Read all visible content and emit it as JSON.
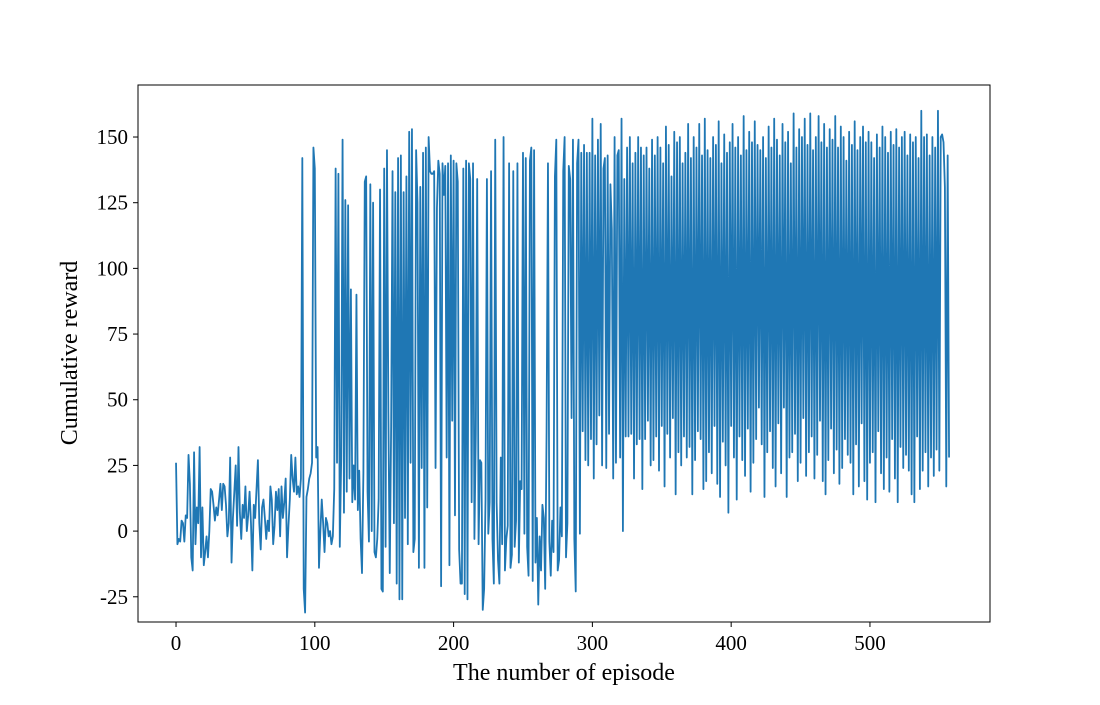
{
  "chart_data": {
    "type": "line",
    "xlabel": "The number of episode",
    "ylabel": "Cumulative reward",
    "xlim": [
      -27.4,
      586.5
    ],
    "xticks": [
      0,
      100,
      200,
      300,
      400,
      500
    ],
    "ylim": [
      -34.6,
      169.8
    ],
    "yticks": [
      -25,
      0,
      25,
      50,
      75,
      100,
      125,
      150
    ],
    "grid": false,
    "series": [
      {
        "name": "Cumulative reward",
        "color": "#1f77b4",
        "values": [
          26,
          -5,
          -3,
          -4,
          4,
          3,
          -4,
          6,
          5,
          29,
          18,
          -10,
          -15,
          30,
          -5,
          9,
          3,
          32,
          -10,
          9,
          -13,
          -8,
          -2,
          -10,
          0,
          16,
          15,
          10,
          4,
          9,
          6,
          12,
          18,
          8,
          18,
          17,
          10,
          -2,
          3,
          28,
          -12,
          5,
          15,
          25,
          2,
          32,
          7,
          -3,
          10,
          5,
          17,
          0,
          6,
          15,
          3,
          -15,
          10,
          5,
          16,
          27,
          3,
          -7,
          9,
          12,
          5,
          -3,
          4,
          0,
          17,
          12,
          -5,
          2,
          15,
          8,
          16,
          -2,
          17,
          5,
          11,
          20,
          -10,
          2,
          12,
          29,
          20,
          15,
          28,
          14,
          17,
          13,
          20,
          142,
          -22,
          -31,
          13,
          16,
          20,
          22,
          26,
          146,
          138,
          28,
          32,
          -14,
          0,
          12,
          3,
          -8,
          5,
          3,
          -2,
          0,
          -5,
          -2,
          16,
          138,
          26,
          136,
          -6,
          27,
          149,
          7,
          126,
          15,
          124,
          20,
          92,
          11,
          25,
          12,
          90,
          8,
          23,
          -3,
          -16,
          22,
          133,
          135,
          15,
          -4,
          132,
          0,
          125,
          -8,
          -10,
          -3,
          12,
          130,
          -22,
          -23,
          138,
          -6,
          145,
          45,
          -16,
          40,
          137,
          3,
          129,
          -20,
          142,
          -26,
          143,
          -26,
          129,
          5,
          135,
          -5,
          152,
          26,
          153,
          -8,
          -3,
          145,
          125,
          -14,
          131,
          24,
          144,
          -14,
          146,
          9,
          150,
          137,
          136,
          136,
          137,
          24,
          123,
          141,
          136,
          -21,
          140,
          128,
          139,
          28,
          140,
          -13,
          143,
          42,
          141,
          6,
          140,
          133,
          -7,
          -20,
          -20,
          138,
          -24,
          141,
          -26,
          140,
          134,
          11,
          140,
          -3,
          37,
          134,
          -5,
          27,
          26,
          -30,
          -22,
          12,
          134,
          -1,
          11,
          137,
          -3,
          -20,
          149,
          11,
          -11,
          -20,
          28,
          -5,
          150,
          -15,
          -3,
          2,
          140,
          -14,
          -9,
          137,
          -6,
          4,
          140,
          -12,
          19,
          16,
          144,
          -1,
          142,
          -6,
          -17,
          141,
          146,
          -19,
          145,
          -12,
          5,
          -28,
          -2,
          -15,
          10,
          5,
          -22,
          38,
          140,
          -4,
          -17,
          4,
          -8,
          135,
          149,
          -15,
          -11,
          9,
          -2,
          137,
          150,
          -10,
          3,
          139,
          134,
          43,
          149,
          -3,
          -23,
          140,
          149,
          -1,
          144,
          38,
          147,
          27,
          144,
          25,
          144,
          35,
          157,
          20,
          143,
          33,
          149,
          44,
          155,
          25,
          138,
          142,
          24,
          143,
          37,
          132,
          115,
          20,
          150,
          26,
          143,
          145,
          28,
          157,
          0,
          134,
          36,
          146,
          36,
          150,
          37,
          140,
          20,
          144,
          33,
          150,
          35,
          146,
          16,
          143,
          35,
          146,
          42,
          138,
          25,
          149,
          27,
          143,
          36,
          150,
          23,
          146,
          40,
          140,
          17,
          154,
          37,
          147,
          28,
          135,
          43,
          152,
          14,
          148,
          30,
          150,
          25,
          140,
          36,
          144,
          28,
          155,
          32,
          142,
          14,
          150,
          27,
          146,
          38,
          155,
          35,
          143,
          16,
          157,
          19,
          145,
          30,
          142,
          22,
          150,
          40,
          147,
          18,
          156,
          13,
          140,
          34,
          151,
          25,
          144,
          7,
          148,
          40,
          155,
          28,
          146,
          12,
          150,
          36,
          143,
          27,
          158,
          21,
          145,
          39,
          152,
          15,
          148,
          26,
          156,
          35,
          147,
          47,
          145,
          33,
          150,
          13,
          142,
          30,
          154,
          38,
          146,
          24,
          157,
          17,
          149,
          41,
          143,
          22,
          155,
          47,
          148,
          13,
          152,
          28,
          140,
          30,
          159,
          37,
          146,
          19,
          153,
          26,
          150,
          43,
          157,
          21,
          147,
          30,
          159,
          36,
          145,
          20,
          150,
          29,
          158,
          42,
          148,
          19,
          155,
          14,
          146,
          27,
          153,
          39,
          149,
          22,
          158,
          31,
          146,
          18,
          154,
          24,
          150,
          35,
          141,
          29,
          152,
          26,
          147,
          14,
          156,
          33,
          145,
          17,
          150,
          41,
          154,
          19,
          148,
          12,
          152,
          26,
          148,
          30,
          142,
          11,
          151,
          38,
          146,
          22,
          154,
          16,
          150,
          28,
          144,
          15,
          152,
          35,
          147,
          20,
          153,
          11,
          146,
          32,
          150,
          24,
          152,
          29,
          143,
          23,
          151,
          14,
          148,
          11,
          150,
          36,
          142,
          16,
          160,
          23,
          150,
          30,
          151,
          17,
          143,
          28,
          150,
          21,
          146,
          31,
          160,
          23,
          150,
          151,
          148,
          131,
          17,
          143,
          28
        ]
      }
    ]
  }
}
